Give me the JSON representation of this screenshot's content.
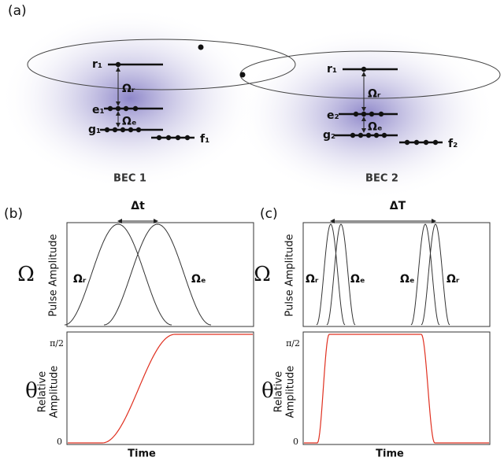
{
  "panel_a": {
    "label": "(a)",
    "bec1": {
      "r": "r₁",
      "e": "e₁",
      "g": "g₁",
      "f": "f₁",
      "omega_r": "Ωᵣ",
      "omega_e": "Ωₑ",
      "name": "BEC 1"
    },
    "bec2": {
      "r": "r₁",
      "e": "e₂",
      "g": "g₂",
      "f": "f₂",
      "omega_r": "Ωᵣ",
      "omega_e": "Ωₑ",
      "name": "BEC 2"
    }
  },
  "panel_b": {
    "label": "(b)",
    "delta": "Δt",
    "pulse_labels": [
      "Ωᵣ",
      "Ωₑ"
    ],
    "top_symbol": "Ω",
    "top_axis": "Pulse Amplitude",
    "bottom_symbol": "θ",
    "bottom_axis": [
      "Relative",
      "Amplitude"
    ],
    "yticks": [
      "π/2",
      "0"
    ],
    "xlabel": "Time"
  },
  "panel_c": {
    "label": "(c)",
    "delta": "ΔT",
    "pulse_labels": [
      "Ωᵣ",
      "Ωₑ",
      "Ωₑ",
      "Ωᵣ"
    ],
    "top_symbol": "Ω",
    "top_axis": "Pulse Amplitude",
    "bottom_symbol": "θ",
    "bottom_axis": [
      "Relative",
      "Amplitude"
    ],
    "yticks": [
      "π/2",
      "0"
    ],
    "xlabel": "Time"
  }
}
